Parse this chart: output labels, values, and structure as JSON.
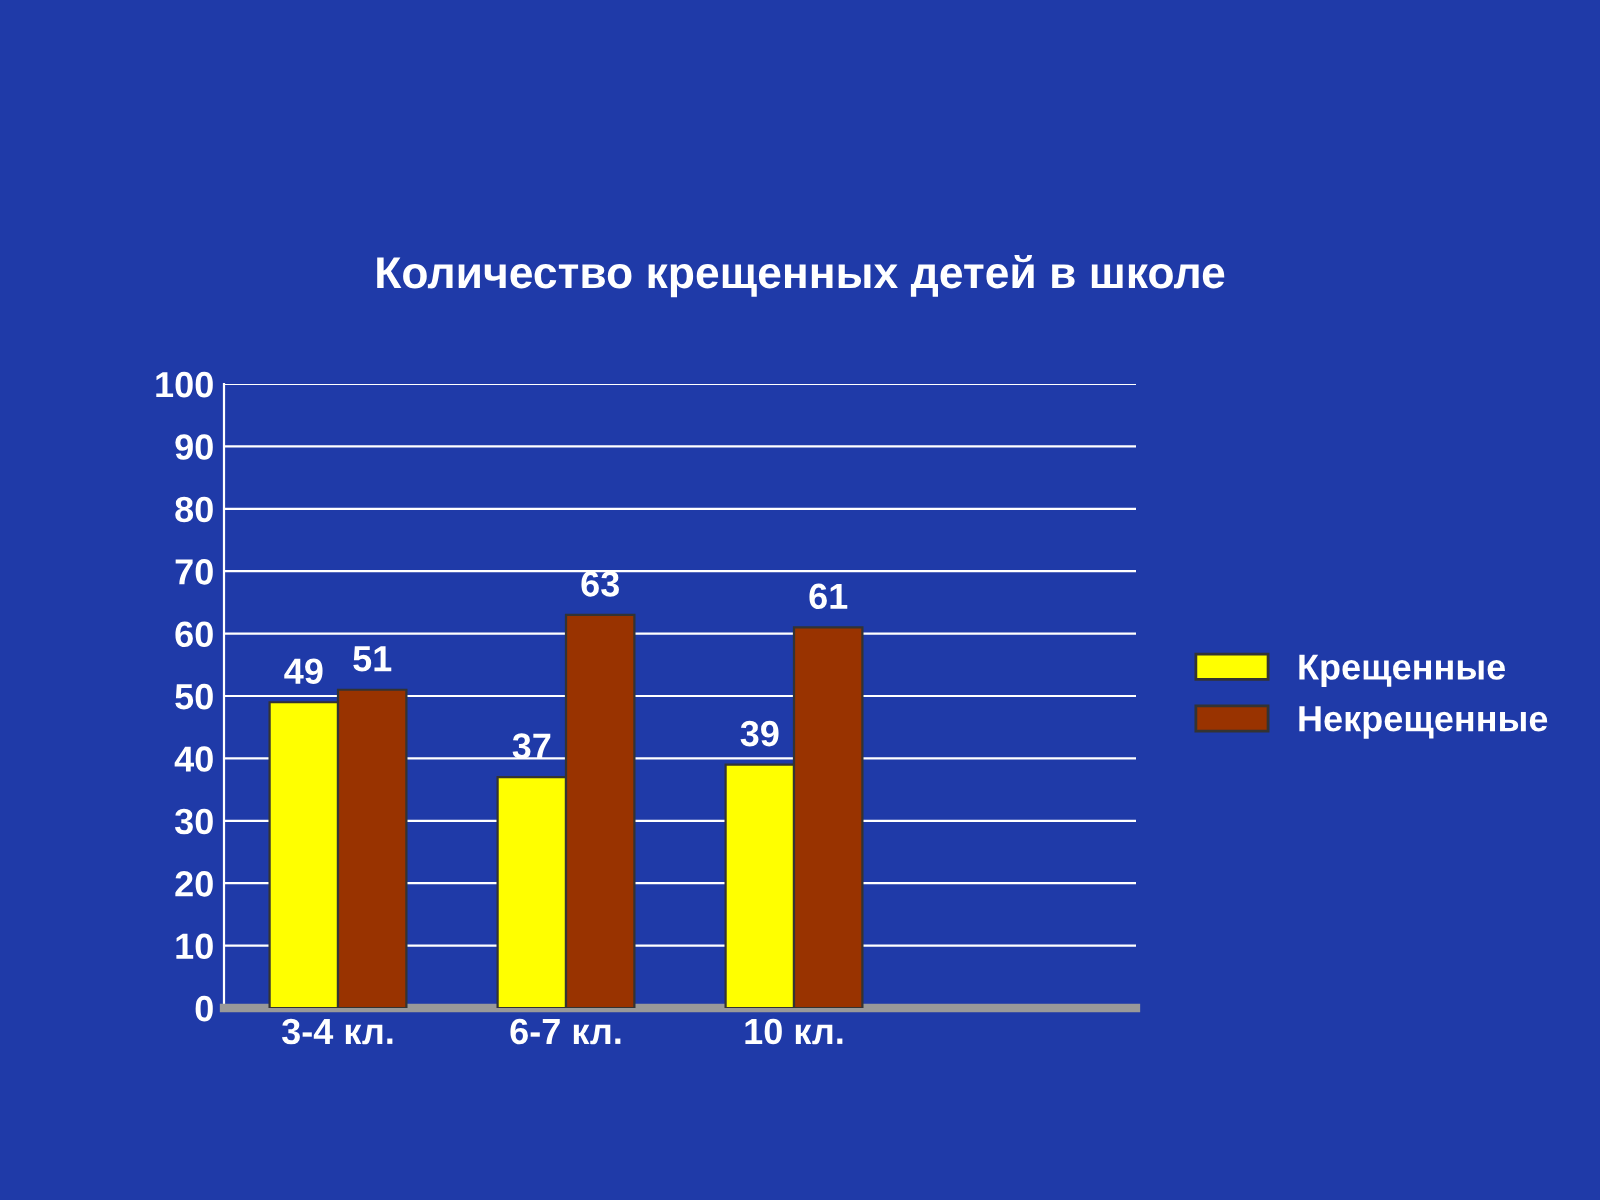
{
  "chart_data": {
    "type": "bar",
    "title": "Количество крещенных детей в школе",
    "categories": [
      "3-4 кл.",
      "6-7 кл.",
      "10 кл."
    ],
    "series": [
      {
        "name": "Крещенные",
        "color": "#ffff00",
        "values": [
          49,
          37,
          39
        ]
      },
      {
        "name": "Некрещенные",
        "color": "#993300",
        "values": [
          51,
          63,
          61
        ]
      }
    ],
    "ylim": [
      0,
      100
    ],
    "yticks": [
      0,
      10,
      20,
      30,
      40,
      50,
      60,
      70,
      80,
      90,
      100
    ],
    "grid": "y",
    "legend": "right",
    "data_labels": true
  }
}
